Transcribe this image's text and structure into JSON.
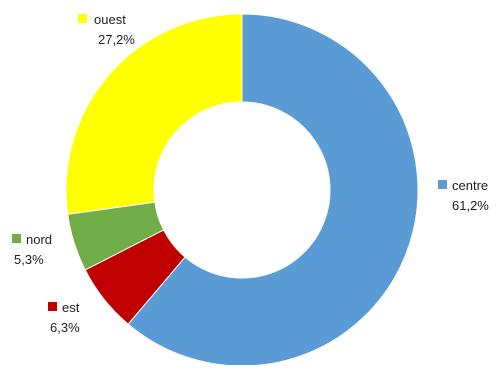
{
  "chart_data": {
    "type": "pie",
    "variant": "donut",
    "title": "",
    "legend": "inline-labels",
    "slices": [
      {
        "label": "centre",
        "value": 61.2,
        "value_label": "61,2%",
        "color": "#5b9bd5"
      },
      {
        "label": "est",
        "value": 6.3,
        "value_label": "6,3%",
        "color": "#c00000"
      },
      {
        "label": "nord",
        "value": 5.3,
        "value_label": "5,3%",
        "color": "#70ad47"
      },
      {
        "label": "ouest",
        "value": 27.2,
        "value_label": "27,2%",
        "color": "#ffff00"
      }
    ]
  }
}
